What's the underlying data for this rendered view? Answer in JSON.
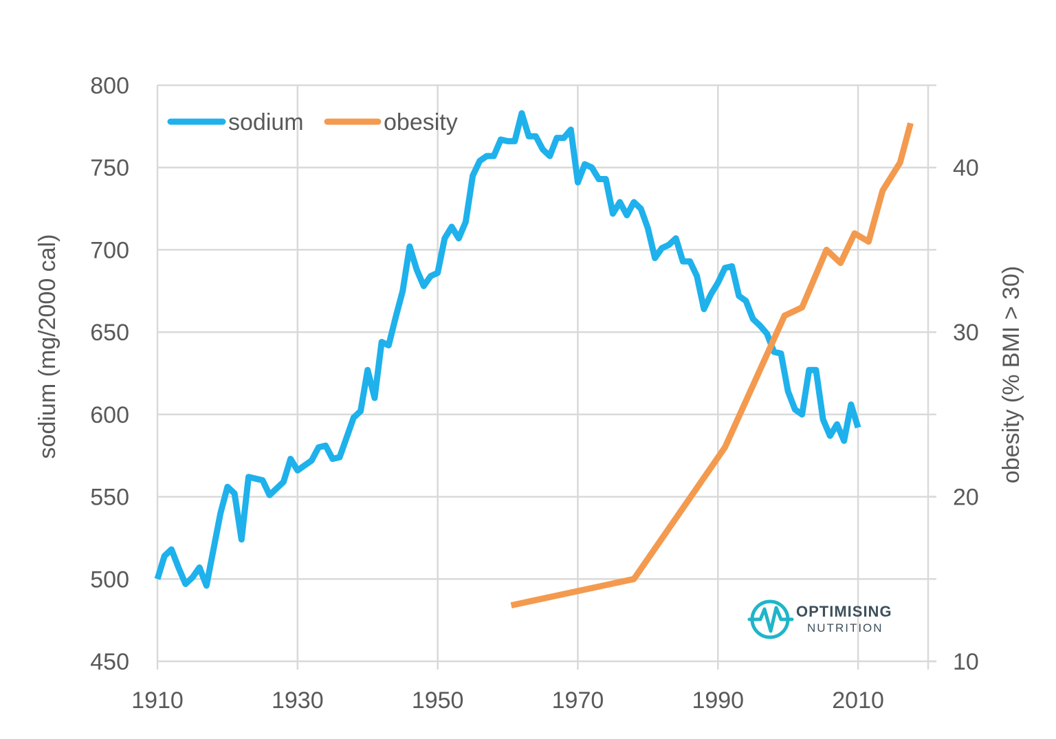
{
  "chart_data": {
    "type": "line",
    "xlim": [
      1910,
      2020
    ],
    "x_ticks": [
      1910,
      1930,
      1950,
      1970,
      1990,
      2010
    ],
    "y_left": {
      "label": "sodium (mg/2000 cal)",
      "lim": [
        450,
        800
      ],
      "ticks": [
        450,
        500,
        550,
        600,
        650,
        700,
        750,
        800
      ]
    },
    "y_right": {
      "label": "obesity (% BMI > 30)",
      "lim": [
        10,
        45
      ],
      "ticks": [
        10,
        20,
        30,
        40
      ]
    },
    "grid": "vertical and horizontal",
    "legend_position": "top-left",
    "series": [
      {
        "name": "sodium",
        "axis": "left",
        "color": "#1fb1eb",
        "x": [
          1910,
          1911,
          1912,
          1913,
          1914,
          1915,
          1916,
          1917,
          1918,
          1919,
          1920,
          1921,
          1922,
          1923,
          1924,
          1925,
          1926,
          1927,
          1928,
          1929,
          1930,
          1931,
          1932,
          1933,
          1934,
          1935,
          1936,
          1937,
          1938,
          1939,
          1940,
          1941,
          1942,
          1943,
          1944,
          1945,
          1946,
          1947,
          1948,
          1949,
          1950,
          1951,
          1952,
          1953,
          1954,
          1955,
          1956,
          1957,
          1958,
          1959,
          1960,
          1961,
          1962,
          1963,
          1964,
          1965,
          1966,
          1967,
          1968,
          1969,
          1970,
          1971,
          1972,
          1973,
          1974,
          1975,
          1976,
          1977,
          1978,
          1979,
          1980,
          1981,
          1982,
          1983,
          1984,
          1985,
          1986,
          1987,
          1988,
          1989,
          1990,
          1991,
          1992,
          1993,
          1994,
          1995,
          1996,
          1997,
          1998,
          1999,
          2000,
          2001,
          2002,
          2003,
          2004,
          2005,
          2006,
          2007,
          2008,
          2009,
          2010
        ],
        "values": [
          500,
          514,
          518,
          507,
          497,
          501,
          507,
          496,
          518,
          540,
          556,
          552,
          524,
          562,
          561,
          560,
          551,
          555,
          559,
          573,
          566,
          569,
          572,
          580,
          581,
          573,
          574,
          586,
          598,
          602,
          627,
          610,
          644,
          642,
          659,
          675,
          702,
          688,
          678,
          684,
          686,
          707,
          714,
          707,
          717,
          745,
          754,
          757,
          757,
          767,
          766,
          766,
          783,
          769,
          769,
          761,
          757,
          768,
          768,
          773,
          741,
          752,
          750,
          743,
          743,
          722,
          729,
          721,
          729,
          725,
          713,
          695,
          701,
          703,
          707,
          693,
          693,
          684,
          664,
          673,
          680,
          689,
          690,
          672,
          669,
          658,
          654,
          649,
          638,
          637,
          614,
          603,
          600,
          627,
          627,
          597,
          587,
          594,
          584,
          606,
          592
        ]
      },
      {
        "name": "obesity",
        "axis": "right",
        "color": "#f39a4f",
        "x": [
          1960.5,
          1978,
          1991,
          1999.5,
          2002,
          2005.5,
          2007.5,
          2009.5,
          2011.5,
          2013.5,
          2016,
          2017.5
        ],
        "values": [
          13.4,
          15.0,
          23.0,
          31.0,
          31.5,
          35.0,
          34.2,
          36.0,
          35.5,
          38.6,
          40.3,
          42.7
        ]
      }
    ]
  },
  "branding": {
    "name": "OPTIMISING",
    "subname": "NUTRITION",
    "color": "#3d4f5c",
    "accent": "#1fb5c8"
  }
}
